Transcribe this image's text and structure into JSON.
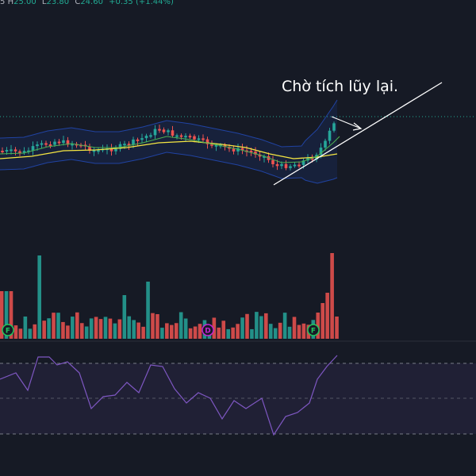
{
  "legend": {
    "prefix": "5",
    "high_key": "H",
    "high": "25.00",
    "low_key": "L",
    "low": "23.80",
    "close_key": "C",
    "close": "24.60",
    "change": "+0.35 (+1.44%)"
  },
  "annotation": "Chờ tích lũy lại.",
  "badges": [
    {
      "letter": "F",
      "color": "#22c55e"
    },
    {
      "letter": "D",
      "color": "#c026d3"
    },
    {
      "letter": "F",
      "color": "#22c55e"
    }
  ],
  "colors": {
    "background": "#161a25",
    "up": "#26a69a",
    "down": "#ef5350",
    "ma_short": "#4caf50",
    "ma_long": "#f5e642",
    "bollinger": "#2962ff",
    "rsi_line": "#7e57c2",
    "rsi_band": "#7e57c2"
  }
}
